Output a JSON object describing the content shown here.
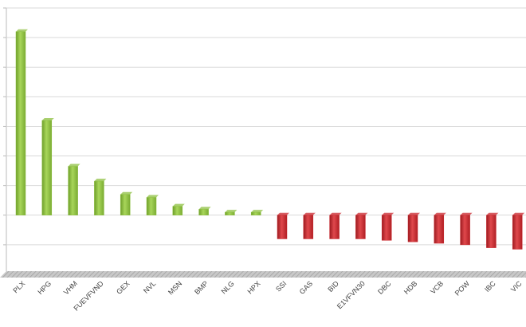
{
  "chart_data": {
    "type": "bar",
    "categories": [
      "PLX",
      "HPG",
      "VHM",
      "FUEVFVND",
      "GEX",
      "NVL",
      "MSN",
      "BMP",
      "NLG",
      "HPX",
      "SSI",
      "GAS",
      "BID",
      "E1VFVN30",
      "DBC",
      "HDB",
      "VCB",
      "POW",
      "IBC",
      "VIC"
    ],
    "values": [
      6.2,
      3.2,
      1.65,
      1.15,
      0.7,
      0.6,
      0.3,
      0.2,
      0.1,
      0.1,
      -0.8,
      -0.8,
      -0.8,
      -0.8,
      -0.85,
      -0.9,
      -0.95,
      -1.0,
      -1.1,
      -1.15
    ],
    "positive_color": "#8cbf3f",
    "negative_color": "#c9262c",
    "ylim": [
      -2,
      7
    ],
    "yticks": [
      -1,
      0,
      1,
      2,
      3,
      4,
      5,
      6,
      7
    ],
    "grid": true
  }
}
